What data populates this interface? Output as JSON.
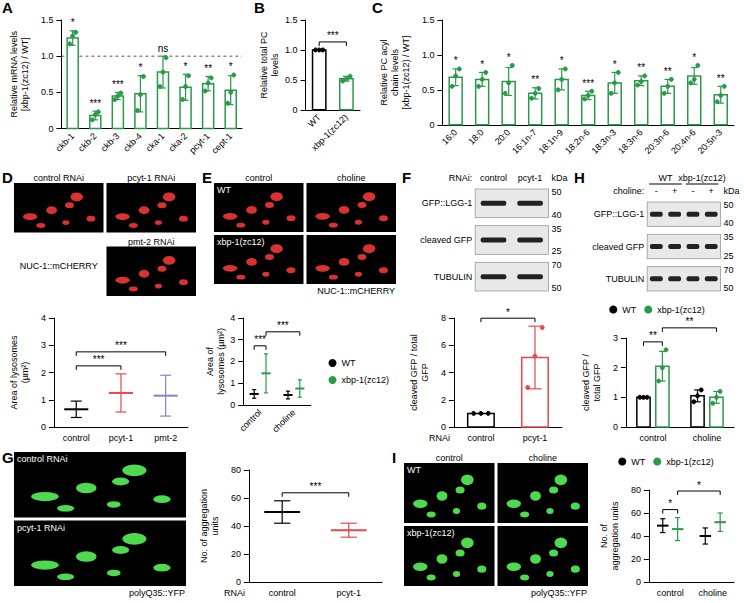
{
  "chart_data": [
    {
      "panel": "A",
      "type": "bar",
      "y_label": "Relative mRNA levels [xbp-1(zc12) / WT]",
      "categories": [
        "ckb-1",
        "ckb-2",
        "ckb-3",
        "ckb-4",
        "cka-1",
        "cka-2",
        "pcyt-1",
        "cept-1"
      ],
      "series": [
        {
          "color": "#2a9a4a",
          "values": [
            1.25,
            0.18,
            0.45,
            0.48,
            0.78,
            0.57,
            0.62,
            0.53
          ],
          "errors": [
            0.1,
            0.06,
            0.05,
            0.25,
            0.22,
            0.18,
            0.1,
            0.2
          ],
          "points": [
            [
              1.17,
              1.28,
              1.33
            ],
            [
              0.12,
              0.19,
              0.23
            ],
            [
              0.4,
              0.45,
              0.49
            ],
            [
              0.25,
              0.47,
              0.72
            ],
            [
              0.58,
              0.78,
              0.98
            ],
            [
              0.4,
              0.58,
              0.73
            ],
            [
              0.52,
              0.63,
              0.7
            ],
            [
              0.35,
              0.5,
              0.74
            ]
          ],
          "significance": [
            "*",
            "***",
            "***",
            "*",
            "ns",
            "*",
            "**",
            "*"
          ]
        }
      ],
      "reference_line": 1,
      "ylim": [
        0,
        1.5
      ],
      "yticks": [
        0,
        0.5,
        {
          "value": 1,
          "label": "1.0"
        },
        1.5
      ]
    },
    {
      "panel": "B",
      "type": "bar",
      "y_label": "Relative total PC levels",
      "categories": [
        "WT",
        "xbp-1(zc12)"
      ],
      "series": [
        {
          "colors": [
            "#000000",
            "#2a9a4a"
          ],
          "values": [
            1,
            0.52
          ],
          "errors": [
            0,
            0.04
          ],
          "points": [
            [
              1,
              1,
              1
            ],
            [
              0.48,
              0.52,
              0.56
            ]
          ]
        }
      ],
      "brackets": [
        {
          "from": [
            0,
            0
          ],
          "to": [
            1,
            0
          ],
          "label": "***"
        }
      ],
      "ylim": [
        0,
        1.5
      ],
      "yticks": [
        0,
        0.5,
        {
          "value": 1,
          "label": "1.0"
        },
        1.5
      ]
    },
    {
      "panel": "C",
      "type": "bar",
      "y_label": "Relative PC acyl chain levels [xbp-1(zc12) / WT]",
      "categories": [
        "16:0",
        "18:0",
        "20:0",
        "16:1n-7",
        "18:1n-9",
        "18:2n-6",
        "18:3n-3",
        "18:3n-6",
        "20:3n-6",
        "20:4n-6",
        "20:5n-3"
      ],
      "series": [
        {
          "color": "#2a9a4a",
          "values": [
            0.68,
            0.65,
            0.62,
            0.45,
            0.65,
            0.42,
            0.6,
            0.63,
            0.55,
            0.7,
            0.43
          ],
          "errors": [
            0.12,
            0.1,
            0.2,
            0.08,
            0.15,
            0.06,
            0.15,
            0.07,
            0.1,
            0.12,
            0.12
          ],
          "points": [
            [
              0.55,
              0.7,
              0.8
            ],
            [
              0.55,
              0.65,
              0.75
            ],
            [
              0.45,
              0.6,
              0.85
            ],
            [
              0.38,
              0.45,
              0.52
            ],
            [
              0.5,
              0.65,
              0.8
            ],
            [
              0.37,
              0.42,
              0.48
            ],
            [
              0.45,
              0.6,
              0.75
            ],
            [
              0.57,
              0.62,
              0.7
            ],
            [
              0.45,
              0.55,
              0.65
            ],
            [
              0.6,
              0.65,
              0.85
            ],
            [
              0.33,
              0.42,
              0.55
            ]
          ],
          "significance": [
            "*",
            "*",
            "*",
            "**",
            "*",
            "***",
            "*",
            "**",
            "**",
            "*",
            "**"
          ]
        }
      ],
      "ylim": [
        0,
        1.5
      ],
      "yticks": [
        0,
        0.5,
        {
          "value": 1,
          "label": "1.0"
        },
        1.5
      ]
    },
    {
      "panel": "D",
      "type": "mean_sd",
      "y_label": "Area of lysosomes (µm²)",
      "categories": [
        "control",
        "pcyt-1",
        "pmt-2"
      ],
      "series": [
        {
          "colors": [
            "#000000",
            "#e3494d",
            "#8b7fc7"
          ],
          "values": [
            0.65,
            1.25,
            1.15
          ],
          "errors": [
            0.3,
            0.7,
            0.75
          ]
        }
      ],
      "brackets": [
        {
          "from": [
            0,
            0
          ],
          "to": [
            1,
            0
          ],
          "label": "***"
        },
        {
          "from": [
            0,
            0
          ],
          "to": [
            2,
            0
          ],
          "label": "***"
        }
      ],
      "ylim": [
        0,
        4
      ],
      "yticks": [
        0,
        1,
        2,
        3,
        4
      ]
    },
    {
      "panel": "E",
      "type": "mean_sd",
      "y_label": "Area of lysosomes (µm²)",
      "categories": [
        "control",
        "choline"
      ],
      "series": [
        {
          "name": "WT",
          "color": "#000000",
          "values": [
            0.5,
            0.45
          ],
          "errors": [
            0.2,
            0.18
          ]
        },
        {
          "name": "xbp-1(zc12)",
          "color": "#2a9a4a",
          "values": [
            1.45,
            0.75
          ],
          "errors": [
            0.9,
            0.4
          ]
        }
      ],
      "brackets": [
        {
          "from": [
            0,
            0
          ],
          "to": [
            0,
            1
          ],
          "label": "***"
        },
        {
          "from": [
            0,
            1
          ],
          "to": [
            1,
            1
          ],
          "label": "***"
        }
      ],
      "legend": "right",
      "ylim": [
        0,
        4
      ],
      "yticks": [
        0,
        1,
        2,
        3,
        4
      ]
    },
    {
      "panel": "F",
      "type": "bar",
      "y_label": "cleaved GFP / total GFP",
      "x_label": "RNAi",
      "categories": [
        "control",
        "pcyt-1"
      ],
      "series": [
        {
          "colors": [
            "#000000",
            "#e3494d"
          ],
          "values": [
            1,
            5.1
          ],
          "errors": [
            0,
            2.3
          ],
          "points": [
            [
              1,
              1,
              1
            ],
            [
              2.9,
              5.2,
              7.3
            ]
          ]
        }
      ],
      "brackets": [
        {
          "from": [
            0,
            0
          ],
          "to": [
            1,
            0
          ],
          "label": "*"
        }
      ],
      "ylim": [
        0,
        8
      ],
      "yticks": [
        0,
        2,
        4,
        6,
        8
      ]
    },
    {
      "panel": "G",
      "type": "mean_sd",
      "y_label": "No. of aggregation units",
      "x_label": "RNAi",
      "categories": [
        "control",
        "pcyt-1"
      ],
      "series": [
        {
          "colors": [
            "#000000",
            "#e3494d"
          ],
          "values": [
            50,
            37
          ],
          "errors": [
            8,
            5
          ]
        }
      ],
      "brackets": [
        {
          "from": [
            0,
            0
          ],
          "to": [
            1,
            0
          ],
          "label": "***"
        }
      ],
      "ylim": [
        0,
        80
      ],
      "yticks": [
        0,
        20,
        40,
        60,
        80
      ]
    },
    {
      "panel": "H",
      "type": "bar",
      "y_label": "cleaved GFP / total GFP",
      "categories": [
        "control",
        "choline"
      ],
      "series": [
        {
          "name": "WT",
          "color": "#000000",
          "values": [
            1,
            1.05
          ],
          "errors": [
            0,
            0.2
          ],
          "points": [
            [
              1,
              1,
              1
            ],
            [
              0.85,
              1.05,
              1.25
            ]
          ]
        },
        {
          "name": "xbp-1(zc12)",
          "color": "#2a9a4a",
          "values": [
            2.05,
            1
          ],
          "errors": [
            0.5,
            0.2
          ],
          "points": [
            [
              1.55,
              2,
              2.6
            ],
            [
              0.8,
              1,
              1.2
            ]
          ]
        }
      ],
      "brackets": [
        {
          "from": [
            0,
            0
          ],
          "to": [
            0,
            1
          ],
          "label": "**"
        },
        {
          "from": [
            0,
            1
          ],
          "to": [
            1,
            1
          ],
          "label": "**"
        }
      ],
      "legend": "top",
      "ylim": [
        0,
        3
      ],
      "yticks": [
        0,
        1,
        2,
        3
      ]
    },
    {
      "panel": "I",
      "type": "mean_sd",
      "y_label": "No. of aggregation units",
      "categories": [
        "control",
        "choline"
      ],
      "series": [
        {
          "name": "WT",
          "color": "#000000",
          "values": [
            49,
            40
          ],
          "errors": [
            6,
            7
          ]
        },
        {
          "name": "xbp-1(zc12)",
          "color": "#2a9a4a",
          "values": [
            46,
            52
          ],
          "errors": [
            10,
            8
          ]
        }
      ],
      "brackets": [
        {
          "from": [
            0,
            0
          ],
          "to": [
            0,
            1
          ],
          "label": "*"
        },
        {
          "from": [
            0,
            1
          ],
          "to": [
            1,
            1
          ],
          "label": "*"
        }
      ],
      "legend": "top",
      "ylim": [
        0,
        80
      ],
      "yticks": [
        0,
        20,
        40,
        60,
        80
      ]
    }
  ],
  "micrographs": [
    {
      "panel": "D",
      "color": "#ff3b3b",
      "cells": [
        [
          "control RNAi",
          "pcyt-1 RNAi"
        ],
        [
          null,
          "pmt-2 RNAi"
        ]
      ],
      "reporter": "NUC-1::mCHERRY"
    },
    {
      "panel": "E",
      "color": "#ff3b3b",
      "col_labels": [
        "control",
        "choline"
      ],
      "row_labels": [
        "WT",
        "xbp-1(zc12)"
      ],
      "reporter": "NUC-1::mCHERRY"
    },
    {
      "panel": "G",
      "color": "#5cff5c",
      "row_labels": [
        "control RNAi",
        "pcyt-1 RNAi"
      ],
      "reporter": "polyQ35::YFP"
    },
    {
      "panel": "I",
      "color": "#5cff5c",
      "col_labels": [
        "control",
        "choline"
      ],
      "row_labels": [
        "WT",
        "xbp-1(zc12)"
      ],
      "reporter": "polyQ35::YFP"
    }
  ],
  "blots": [
    {
      "panel": "F",
      "lane_header": "RNAi:",
      "lanes": [
        "control",
        "pcyt-1"
      ],
      "unit": "kDa",
      "rows": [
        {
          "name": "GFP::LGG-1",
          "markers": [
            50,
            40
          ]
        },
        {
          "name": "cleaved GFP",
          "markers": [
            35,
            25
          ]
        },
        {
          "name": "TUBULIN",
          "markers": [
            70,
            50
          ]
        }
      ]
    },
    {
      "panel": "H",
      "lane_header": "choline:",
      "groups": [
        {
          "label": "WT",
          "lanes": 2
        },
        {
          "label": "xbp-1(zc12)",
          "lanes": 2
        }
      ],
      "lanes": [
        "-",
        "+",
        "-",
        "+"
      ],
      "unit": "kDa",
      "rows": [
        {
          "name": "GFP::LGG-1",
          "markers": [
            50,
            40
          ]
        },
        {
          "name": "cleaved GFP",
          "markers": [
            35,
            25
          ]
        },
        {
          "name": "TUBULIN",
          "markers": [
            70,
            50
          ]
        }
      ]
    }
  ]
}
